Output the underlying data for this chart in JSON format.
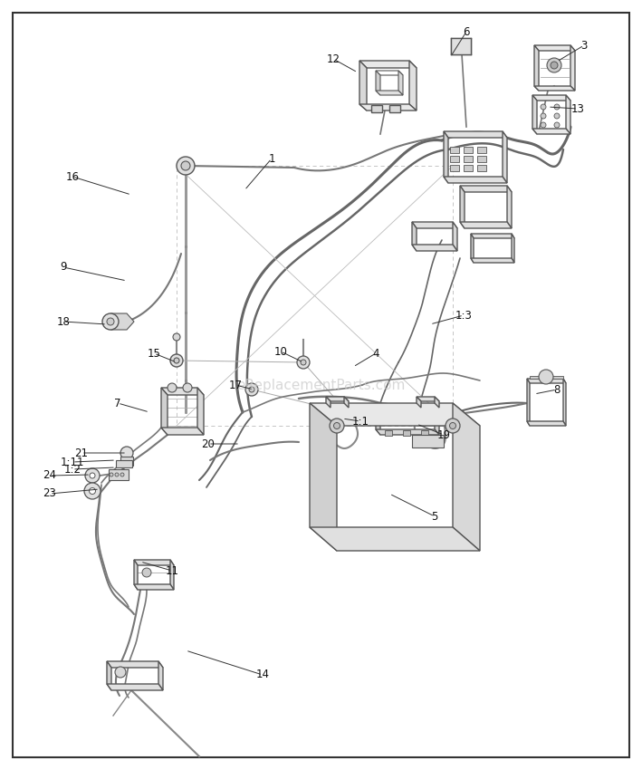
{
  "background_color": "#ffffff",
  "watermark": "eReplacementParts.com",
  "watermark_color": "#c8c8c8",
  "watermark_fontsize": 11,
  "line_color": "#555555",
  "light_line_color": "#888888",
  "fill_color": "#f0f0f0",
  "label_fontsize": 8.5,
  "border_color": "#555555",
  "labels": [
    [
      "1",
      300,
      175,
      270,
      210
    ],
    [
      "3",
      645,
      50,
      615,
      68
    ],
    [
      "4",
      415,
      390,
      390,
      405
    ],
    [
      "5",
      480,
      570,
      430,
      545
    ],
    [
      "6",
      515,
      35,
      498,
      62
    ],
    [
      "7",
      130,
      445,
      165,
      455
    ],
    [
      "8",
      615,
      430,
      590,
      435
    ],
    [
      "9",
      70,
      295,
      140,
      310
    ],
    [
      "10",
      310,
      388,
      335,
      400
    ],
    [
      "11",
      190,
      630,
      155,
      620
    ],
    [
      "12",
      368,
      65,
      395,
      80
    ],
    [
      "13",
      638,
      120,
      605,
      118
    ],
    [
      "14",
      290,
      745,
      205,
      718
    ],
    [
      "15",
      170,
      390,
      195,
      400
    ],
    [
      "16",
      80,
      195,
      145,
      215
    ],
    [
      "17",
      260,
      425,
      280,
      430
    ],
    [
      "18",
      70,
      355,
      118,
      358
    ],
    [
      "19",
      490,
      480,
      460,
      468
    ],
    [
      "20",
      230,
      490,
      265,
      490
    ],
    [
      "21",
      90,
      500,
      140,
      500
    ],
    [
      "23",
      55,
      545,
      110,
      540
    ],
    [
      "24",
      55,
      525,
      100,
      524
    ],
    [
      "1:1",
      398,
      465,
      378,
      462
    ],
    [
      "1:2",
      80,
      518,
      128,
      516
    ],
    [
      "1:3",
      512,
      348,
      475,
      358
    ],
    [
      "1:11",
      80,
      510,
      128,
      508
    ]
  ]
}
